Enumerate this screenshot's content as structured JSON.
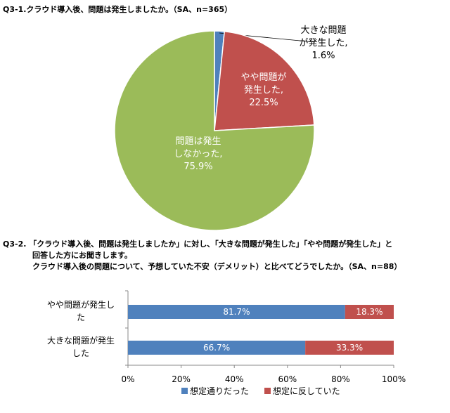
{
  "q1": {
    "title": "Q3-1.クラウド導入後、問題は発生しましたか。（SA、n=365）"
  },
  "q2": {
    "prefix": "Q3-2.",
    "lines": [
      "「クラウド導入後、問題は発生しましたか」に対し、「大きな問題が発生した」「やや問題が発生した」と",
      "回答した方にお聞きします。",
      "クラウド導入後の問題について、予想していた不安（デメリット）と比べてどうでしたか。（SA、n=88）"
    ]
  },
  "chart_data": [
    {
      "type": "pie",
      "slices": [
        {
          "label_lines": [
            "大きな問題",
            "が発生した,"
          ],
          "value_label": "1.6%",
          "value": 1.6,
          "color": "#4f81bd"
        },
        {
          "label_lines": [
            "やや問題が",
            "発生した,"
          ],
          "value_label": "22.5%",
          "value": 22.5,
          "color": "#c0504d"
        },
        {
          "label_lines": [
            "問題は発生",
            "しなかった,"
          ],
          "value_label": "75.9%",
          "value": 75.9,
          "color": "#9bbb59"
        }
      ]
    },
    {
      "type": "bar",
      "orientation": "horizontal",
      "stacked": true,
      "categories": [
        {
          "lines": [
            "やや問題が発生し",
            "た"
          ]
        },
        {
          "lines": [
            "大きな問題が発生",
            "した"
          ]
        }
      ],
      "series": [
        {
          "name": "想定通りだった",
          "values": [
            81.7,
            66.7
          ],
          "labels": [
            "81.7%",
            "66.7%"
          ],
          "color": "#4f81bd"
        },
        {
          "name": "想定に反していた",
          "values": [
            18.3,
            33.3
          ],
          "labels": [
            "18.3%",
            "33.3%"
          ],
          "color": "#c0504d"
        }
      ],
      "xlim": [
        0,
        100
      ],
      "xticks": [
        "0%",
        "20%",
        "40%",
        "60%",
        "80%",
        "100%"
      ],
      "legend": "bottom"
    }
  ]
}
